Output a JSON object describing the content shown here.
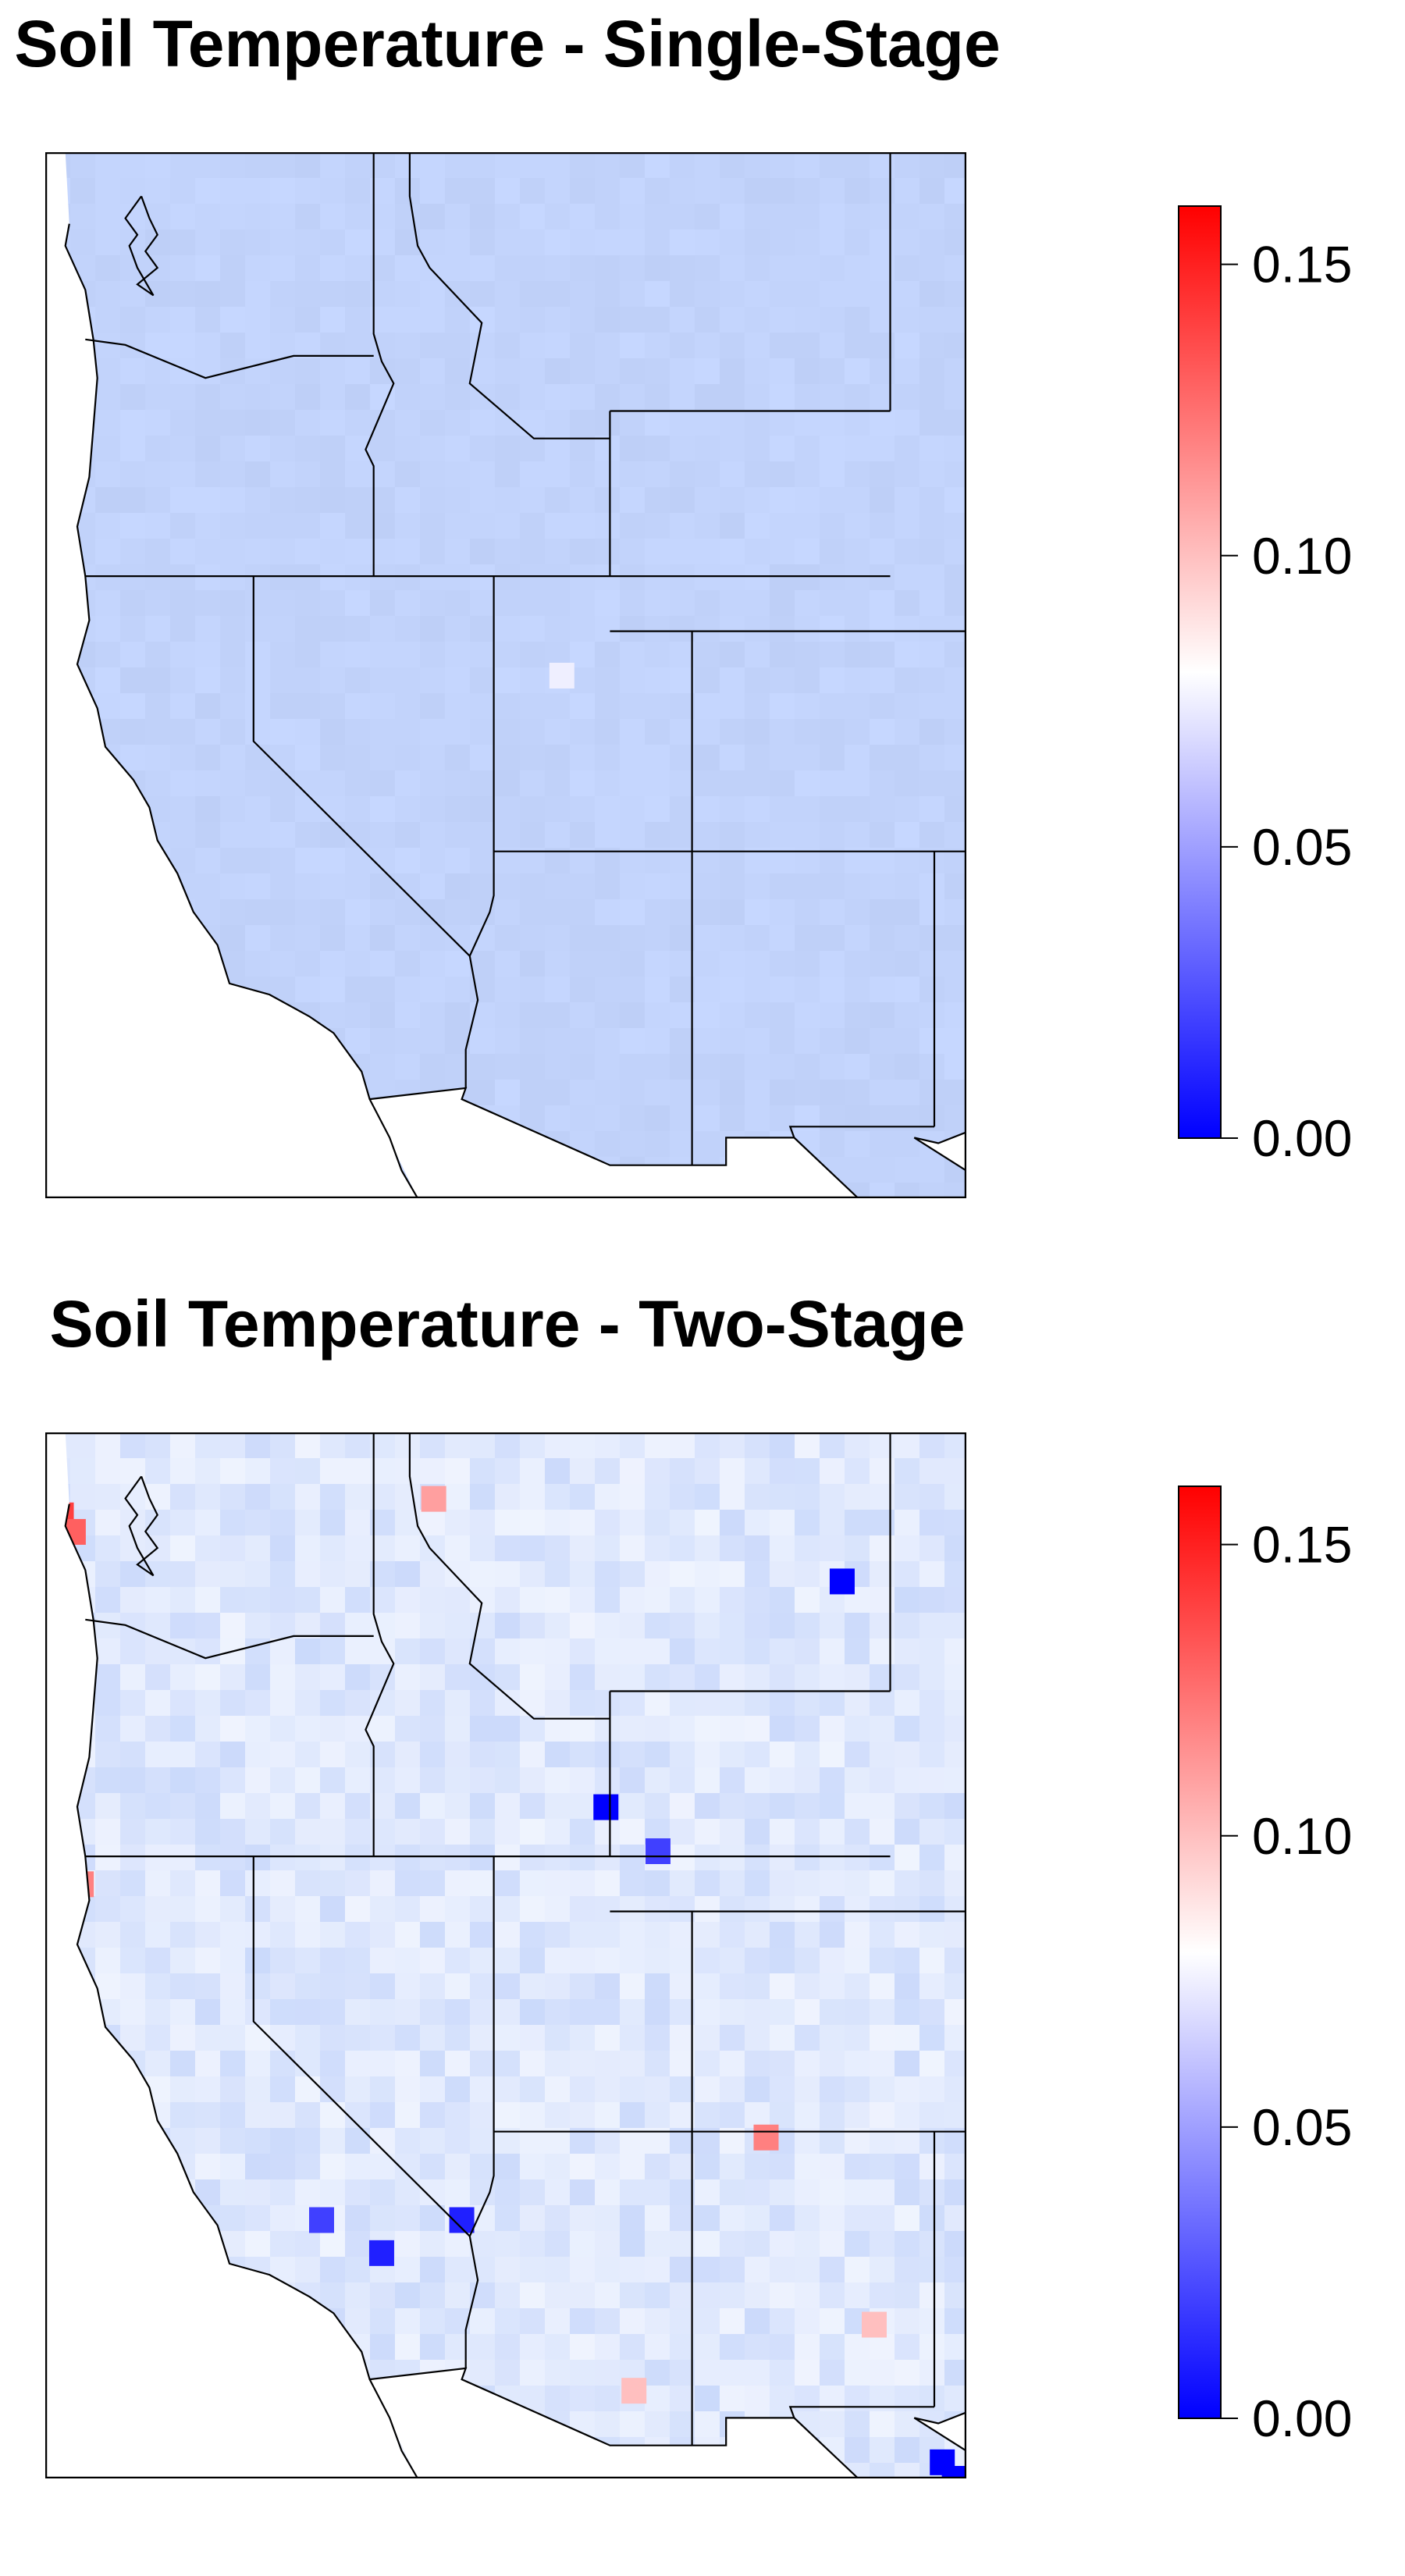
{
  "panels": [
    {
      "id": "single",
      "title": "Soil Temperature - Single-Stage",
      "base_color": "#c2d3fb",
      "anomaly_cells": [
        {
          "lon": -112.3,
          "lat": 40.2,
          "value": 0.075
        }
      ],
      "outlier_cells": []
    },
    {
      "id": "two",
      "title": "Soil Temperature - Two-Stage",
      "base_color": "#dfe8fd",
      "anomaly_cells": [
        {
          "lon": -124.8,
          "lat": 48.2,
          "value": 0.14
        },
        {
          "lon": -124.5,
          "lat": 47.9,
          "value": 0.13
        },
        {
          "lon": -124.6,
          "lat": 44.0,
          "value": 0.12
        },
        {
          "lon": -124.3,
          "lat": 41.5,
          "value": 0.12
        },
        {
          "lon": -107.2,
          "lat": 36.9,
          "value": 0.12
        },
        {
          "lon": -115.5,
          "lat": 48.5,
          "value": 0.11
        },
        {
          "lon": -110.5,
          "lat": 32.3,
          "value": 0.1
        },
        {
          "lon": -104.5,
          "lat": 33.5,
          "value": 0.1
        }
      ],
      "outlier_cells": [
        {
          "lon": -105.3,
          "lat": 47.0,
          "value": 0.0
        },
        {
          "lon": -111.2,
          "lat": 42.9,
          "value": 0.0
        },
        {
          "lon": -116.8,
          "lat": 34.8,
          "value": 0.01
        },
        {
          "lon": -114.8,
          "lat": 35.4,
          "value": 0.01
        },
        {
          "lon": -118.3,
          "lat": 35.4,
          "value": 0.02
        },
        {
          "lon": -109.9,
          "lat": 42.1,
          "value": 0.02
        },
        {
          "lon": -102.8,
          "lat": 31.0,
          "value": 0.0
        },
        {
          "lon": -102.5,
          "lat": 30.7,
          "value": 0.0
        }
      ]
    }
  ],
  "colorbar": {
    "min": 0.0,
    "max": 0.16,
    "ticks": [
      "0.00",
      "0.05",
      "0.10",
      "0.15"
    ],
    "tick_values": [
      0.0,
      0.05,
      0.1,
      0.15
    ],
    "colors": {
      "low": "#0000ff",
      "mid": "#ffffff",
      "high": "#ff0000"
    },
    "mid_value": 0.08
  }
}
